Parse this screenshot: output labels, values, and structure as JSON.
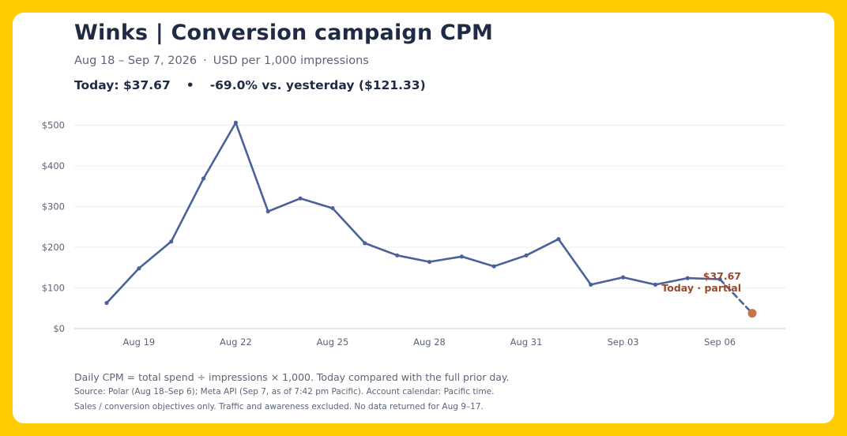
{
  "header": {
    "title": "Winks | Conversion campaign CPM",
    "date_range": "Aug 18 – Sep 7, 2026",
    "separator": "·",
    "units": "USD per 1,000 impressions",
    "kpi_today": "Today: $37.67",
    "kpi_bullet": "•",
    "kpi_change": "-69.0% vs. yesterday ($121.33)"
  },
  "chart_data": {
    "type": "line",
    "x": [
      "Aug 18",
      "Aug 19",
      "Aug 20",
      "Aug 21",
      "Aug 22",
      "Aug 23",
      "Aug 24",
      "Aug 25",
      "Aug 26",
      "Aug 27",
      "Aug 28",
      "Aug 29",
      "Aug 30",
      "Aug 31",
      "Sep 01",
      "Sep 02",
      "Sep 03",
      "Sep 04",
      "Sep 05",
      "Sep 06",
      "Sep 07"
    ],
    "series": [
      {
        "values": [
          63,
          148,
          214,
          369,
          506,
          288,
          320,
          296,
          210,
          180,
          164,
          177,
          153,
          180,
          220,
          108,
          126,
          108,
          124,
          121.33,
          37.67
        ]
      }
    ],
    "partial_last_point": true,
    "y_ticks": [
      0,
      100,
      200,
      300,
      400,
      500
    ],
    "y_tick_labels": [
      "$0",
      "$100",
      "$200",
      "$300",
      "$400",
      "$500"
    ],
    "ylim": [
      0,
      530
    ],
    "x_tick_labels": [
      "Aug 19",
      "Aug 22",
      "Aug 25",
      "Aug 28",
      "Aug 31",
      "Sep 03",
      "Sep 06"
    ],
    "grid": "horizontal",
    "annotation": {
      "value_label": "$37.67",
      "label": "Today · partial"
    },
    "colors": {
      "line": "#4a6199",
      "today": "#c8714a",
      "annotation": "#9a4a2a",
      "grid": "#ebedf0",
      "axis": "#c8ccd3"
    }
  },
  "footer": {
    "note": "Daily CPM = total spend ÷ impressions × 1,000. Today compared with the full prior day.",
    "source": "Source: Polar (Aug 18–Sep 6); Meta API (Sep 7, as of 7:42 pm Pacific). Account calendar: Pacific time.",
    "scope": "Sales / conversion objectives only. Traffic and awareness excluded. No data returned for Aug 9–17."
  }
}
